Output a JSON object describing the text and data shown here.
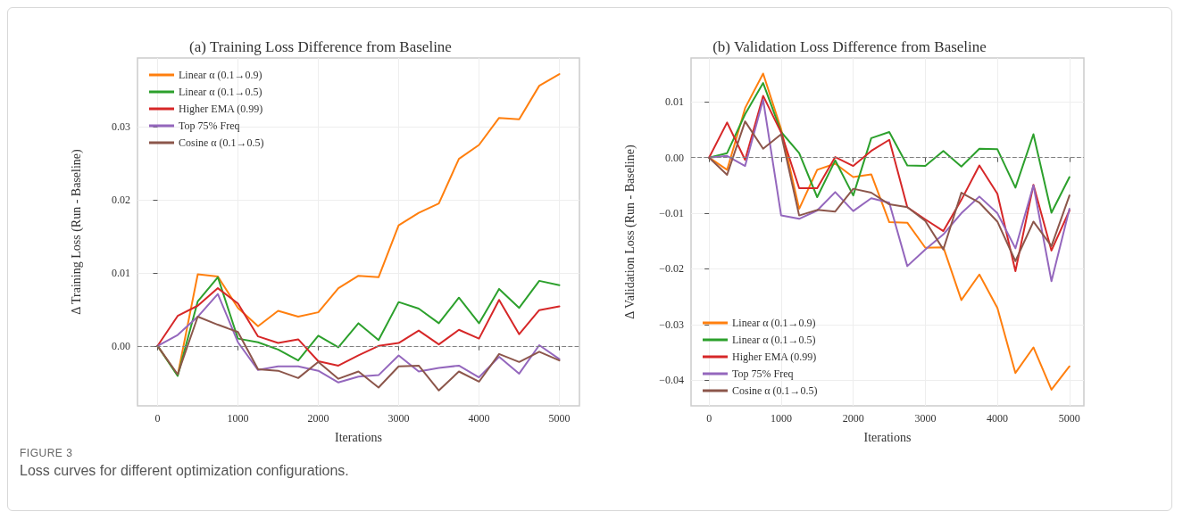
{
  "chart_data": [
    {
      "type": "line",
      "title": "(a) Training Loss Difference from Baseline",
      "xlabel": "Iterations",
      "ylabel": "Δ Training Loss (Run - Baseline)",
      "x": [
        0,
        250,
        500,
        750,
        1000,
        1250,
        1500,
        1750,
        2000,
        2250,
        2500,
        2750,
        3000,
        3250,
        3500,
        3750,
        4000,
        4250,
        4500,
        4750,
        5000
      ],
      "series": [
        {
          "name": "Linear α (0.1→0.9)",
          "color": "#ff7f0e",
          "values": [
            0,
            -0.004,
            0.0098,
            0.0095,
            0.0052,
            0.0027,
            0.0048,
            0.004,
            0.0046,
            0.0079,
            0.0096,
            0.0094,
            0.0165,
            0.0182,
            0.0195,
            0.0256,
            0.0275,
            0.0312,
            0.031,
            0.0356,
            0.0372
          ]
        },
        {
          "name": "Linear α (0.1→0.5)",
          "color": "#2ca02c",
          "values": [
            0,
            -0.0041,
            0.0061,
            0.0094,
            0.001,
            0.0005,
            -0.0005,
            -0.002,
            0.0014,
            -0.0002,
            0.0031,
            0.0008,
            0.006,
            0.0051,
            0.0031,
            0.0066,
            0.0031,
            0.0078,
            0.0052,
            0.0089,
            0.0083
          ]
        },
        {
          "name": "Higher EMA (0.99)",
          "color": "#d62728",
          "values": [
            0,
            0.0041,
            0.0055,
            0.0079,
            0.0058,
            0.0013,
            0.0004,
            0.0009,
            -0.0021,
            -0.0027,
            -0.0013,
            0,
            0.0004,
            0.0021,
            0.0002,
            0.0022,
            0.001,
            0.0063,
            0.0016,
            0.0049,
            0.0054
          ]
        },
        {
          "name": "Top 75% Freq",
          "color": "#9467bd",
          "values": [
            0,
            0.0015,
            0.004,
            0.0071,
            0.0005,
            -0.0033,
            -0.0028,
            -0.0028,
            -0.0034,
            -0.005,
            -0.0042,
            -0.004,
            -0.0013,
            -0.0035,
            -0.003,
            -0.0027,
            -0.0043,
            -0.0015,
            -0.0038,
            0.0001,
            -0.0018
          ]
        },
        {
          "name": "Cosine α (0.1→0.5)",
          "color": "#8c564b",
          "values": [
            0,
            -0.0039,
            0.004,
            0.0029,
            0.0019,
            -0.0032,
            -0.0034,
            -0.0044,
            -0.0022,
            -0.0045,
            -0.0035,
            -0.0057,
            -0.0028,
            -0.0027,
            -0.0061,
            -0.0035,
            -0.0049,
            -0.0011,
            -0.0022,
            -0.0008,
            -0.002
          ]
        }
      ],
      "xlim": [
        -250,
        5250
      ],
      "xticks": [
        0,
        1000,
        2000,
        3000,
        4000,
        5000
      ],
      "ylim": [
        -0.0082,
        0.0394
      ],
      "yticks": [
        {
          "value": 0,
          "label": "0.00"
        },
        0.01,
        0.02,
        0.03
      ],
      "ref_lines": [
        {
          "axis": "y",
          "value": 0,
          "color": "#808080",
          "line_style": "dashed"
        }
      ],
      "grid": true,
      "legend": "top left",
      "marker": "none",
      "line_style": "solid",
      "annotations": [
        "FIGURE 3",
        "Loss curves for different optimization configurations."
      ]
    },
    {
      "type": "line",
      "title": "(b) Validation Loss Difference from Baseline",
      "xlabel": "Iterations",
      "ylabel": "Δ Validation Loss (Run - Baseline)",
      "x": [
        0,
        250,
        500,
        750,
        1000,
        1250,
        1500,
        1750,
        2000,
        2250,
        2500,
        2750,
        3000,
        3250,
        3500,
        3750,
        4000,
        4250,
        4500,
        4750,
        5000
      ],
      "series": [
        {
          "name": "Linear α (0.1→0.9)",
          "color": "#ff7f0e",
          "values": [
            0,
            -0.0022,
            0.0089,
            0.0151,
            0.0051,
            -0.0092,
            -0.0022,
            -0.0011,
            -0.0035,
            -0.003,
            -0.0116,
            -0.0117,
            -0.0162,
            -0.0161,
            -0.0256,
            -0.021,
            -0.027,
            -0.0387,
            -0.0341,
            -0.0417,
            -0.0375
          ]
        },
        {
          "name": "Linear α (0.1→0.5)",
          "color": "#2ca02c",
          "values": [
            0,
            0.0008,
            0.0078,
            0.0134,
            0.0046,
            0.0008,
            -0.0071,
            -0.0005,
            -0.0068,
            0.0035,
            0.0046,
            -0.0014,
            -0.0015,
            0.0012,
            -0.0016,
            0.0016,
            0.0015,
            -0.0054,
            0.0042,
            -0.0099,
            -0.0035
          ]
        },
        {
          "name": "Higher EMA (0.99)",
          "color": "#d62728",
          "values": [
            0,
            0.0063,
            -0.0004,
            0.0111,
            0.0045,
            -0.0055,
            -0.0055,
            0.0001,
            -0.0015,
            0.0012,
            0.0032,
            -0.0089,
            -0.0111,
            -0.0132,
            -0.0076,
            -0.0014,
            -0.0065,
            -0.0204,
            -0.0049,
            -0.0167,
            -0.0095
          ]
        },
        {
          "name": "Top 75% Freq",
          "color": "#9467bd",
          "values": [
            0,
            0.0003,
            -0.0015,
            0.0104,
            -0.0104,
            -0.011,
            -0.0095,
            -0.0062,
            -0.0096,
            -0.0073,
            -0.0081,
            -0.0195,
            -0.0165,
            -0.0138,
            -0.01,
            -0.007,
            -0.01,
            -0.0163,
            -0.005,
            -0.0222,
            -0.0092
          ]
        },
        {
          "name": "Cosine α (0.1→0.5)",
          "color": "#8c564b",
          "values": [
            0,
            -0.0031,
            0.0065,
            0.0016,
            0.0042,
            -0.0104,
            -0.0094,
            -0.0097,
            -0.0056,
            -0.0063,
            -0.0084,
            -0.0089,
            -0.0114,
            -0.0165,
            -0.0063,
            -0.0081,
            -0.0115,
            -0.0186,
            -0.0115,
            -0.0159,
            -0.0068
          ]
        }
      ],
      "xlim": [
        -250,
        5200
      ],
      "xticks": [
        0,
        1000,
        2000,
        3000,
        4000,
        5000
      ],
      "ylim": [
        -0.0446,
        0.0179
      ],
      "yticks": [
        {
          "value": -0.04,
          "label": "−0.04"
        },
        {
          "value": -0.03,
          "label": "−0.03"
        },
        {
          "value": -0.02,
          "label": "−0.02"
        },
        {
          "value": -0.01,
          "label": "−0.01"
        },
        {
          "value": 0,
          "label": "0.00"
        },
        0.01
      ],
      "ref_lines": [
        {
          "axis": "y",
          "value": 0,
          "color": "#808080",
          "line_style": "dashed"
        }
      ],
      "grid": true,
      "legend": "bottom left",
      "marker": "none",
      "line_style": "solid"
    }
  ]
}
